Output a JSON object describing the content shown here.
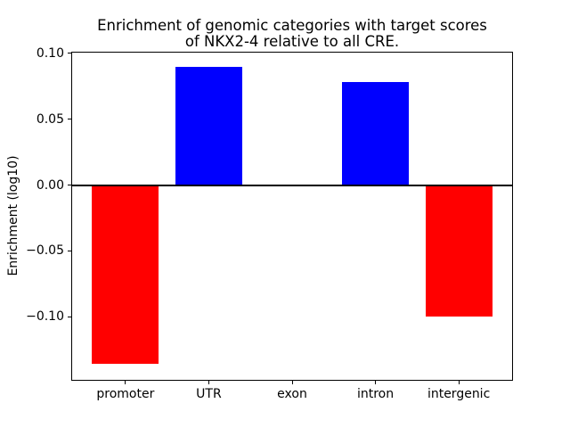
{
  "figure": {
    "background": "#ffffff",
    "text_color": "#000000",
    "axis_color": "#000000"
  },
  "chart_data": {
    "type": "bar",
    "title": "Enrichment of genomic categories with target scores\nof NKX2-4 relative to all CRE.",
    "title_lines": [
      "Enrichment of genomic categories with target scores",
      "of NKX2-4 relative to all CRE."
    ],
    "ylabel": "Enrichment (log10)",
    "categories": [
      "promoter",
      "UTR",
      "exon",
      "intron",
      "intergenic"
    ],
    "values": [
      -0.136,
      0.09,
      0.0,
      0.078,
      -0.1
    ],
    "bar_colors": [
      "#ff0000",
      "#0000ff",
      "#0000ff",
      "#0000ff",
      "#ff0000"
    ],
    "positive_color": "#0000ff",
    "negative_color": "#ff0000",
    "ylim": [
      -0.148,
      0.101
    ],
    "yticks": [
      0.1,
      0.05,
      0.0,
      -0.05,
      -0.1
    ],
    "ytick_labels": [
      "0.10",
      "0.05",
      "0.00",
      "−0.05",
      "−0.10"
    ],
    "bar_width": 0.8,
    "grid": false,
    "zero_line": true
  }
}
